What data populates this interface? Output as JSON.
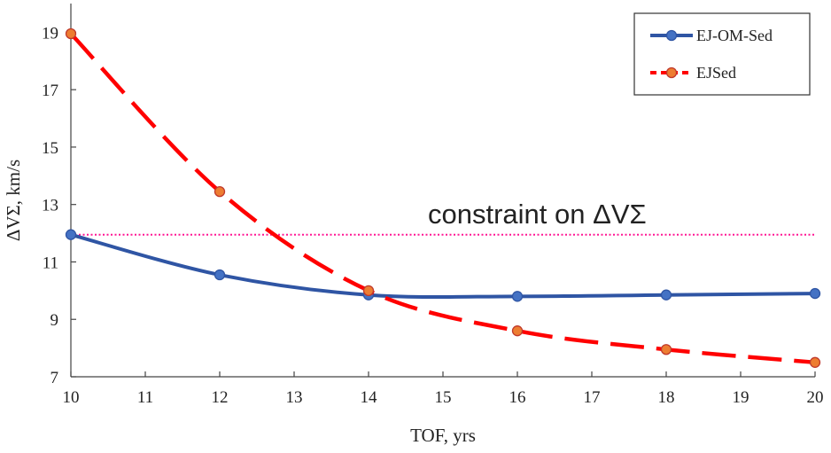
{
  "chart_data": {
    "type": "line",
    "xlabel": "TOF, yrs",
    "ylabel": "ΔVΣ, km/s",
    "xlim": [
      10,
      20
    ],
    "ylim": [
      7,
      20
    ],
    "x_ticks": [
      "10",
      "11",
      "12",
      "13",
      "14",
      "15",
      "16",
      "17",
      "18",
      "19",
      "20"
    ],
    "y_ticks": [
      "7",
      "9",
      "11",
      "13",
      "15",
      "17",
      "19"
    ],
    "series": [
      {
        "name": "EJ-OM-Sed",
        "style": "solid",
        "color": "#2F55A4",
        "marker_color": "#4472C4",
        "x": [
          10,
          12,
          14,
          16,
          18,
          20
        ],
        "values": [
          11.95,
          10.55,
          9.85,
          9.8,
          9.85,
          9.9
        ]
      },
      {
        "name": "EJSed",
        "style": "dashed",
        "color": "#FF0000",
        "marker_color": "#ED7D31",
        "x": [
          10,
          12,
          14,
          16,
          18,
          20
        ],
        "values": [
          18.95,
          13.45,
          10.0,
          8.6,
          7.95,
          7.5
        ]
      }
    ],
    "constraint": {
      "label": "constraint on ΔVΣ",
      "value": 11.95,
      "color": "#FF1493"
    },
    "legend_position": "top-right",
    "grid": false
  }
}
